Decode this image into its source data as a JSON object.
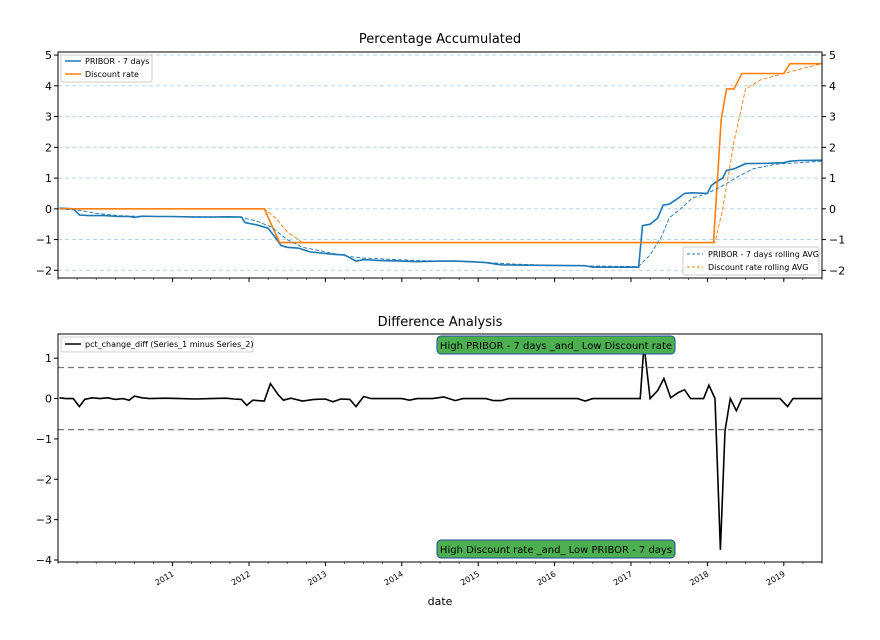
{
  "chart_data": [
    {
      "type": "line",
      "title": "Percentage Accumulated",
      "ylim": [
        -2.25,
        5.1
      ],
      "y_ticks": [
        -2,
        -1,
        0,
        1,
        2,
        3,
        4,
        5
      ],
      "y_tick_labels": [
        "−2",
        "−1",
        "0",
        "1",
        "2",
        "3",
        "4",
        "5"
      ],
      "secondary_y_axis": true,
      "grid": "horizontal dashed",
      "legends": [
        {
          "placement": "upper left",
          "entries": [
            "PRIBOR - 7 days",
            "Discount rate"
          ]
        },
        {
          "placement": "lower right",
          "entries": [
            "PRIBOR - 7 days rolling AVG",
            "Discount rate rolling AVG"
          ]
        }
      ],
      "series": [
        {
          "name": "PRIBOR - 7 days",
          "color": "#1f77b4",
          "style": "solid",
          "points": [
            [
              2010.02,
              0.02
            ],
            [
              2010.2,
              0.0
            ],
            [
              2010.28,
              -0.2
            ],
            [
              2010.4,
              -0.22
            ],
            [
              2010.6,
              -0.22
            ],
            [
              2010.8,
              -0.25
            ],
            [
              2010.93,
              -0.25
            ],
            [
              2011.0,
              -0.28
            ],
            [
              2011.1,
              -0.24
            ],
            [
              2011.3,
              -0.25
            ],
            [
              2011.5,
              -0.25
            ],
            [
              2011.8,
              -0.27
            ],
            [
              2012.0,
              -0.27
            ],
            [
              2012.2,
              -0.26
            ],
            [
              2012.4,
              -0.27
            ],
            [
              2012.45,
              -0.45
            ],
            [
              2012.6,
              -0.52
            ],
            [
              2012.75,
              -0.63
            ],
            [
              2012.85,
              -0.95
            ],
            [
              2012.92,
              -1.2
            ],
            [
              2013.0,
              -1.25
            ],
            [
              2013.15,
              -1.28
            ],
            [
              2013.3,
              -1.4
            ],
            [
              2013.6,
              -1.48
            ],
            [
              2013.75,
              -1.5
            ],
            [
              2013.9,
              -1.7
            ],
            [
              2014.0,
              -1.65
            ],
            [
              2014.2,
              -1.68
            ],
            [
              2014.5,
              -1.7
            ],
            [
              2014.7,
              -1.72
            ],
            [
              2015.0,
              -1.7
            ],
            [
              2015.2,
              -1.7
            ],
            [
              2015.4,
              -1.72
            ],
            [
              2015.6,
              -1.75
            ],
            [
              2015.8,
              -1.82
            ],
            [
              2016.0,
              -1.83
            ],
            [
              2016.5,
              -1.84
            ],
            [
              2016.9,
              -1.85
            ],
            [
              2017.0,
              -1.9
            ],
            [
              2017.2,
              -1.9
            ],
            [
              2017.6,
              -1.9
            ],
            [
              2017.65,
              -0.55
            ],
            [
              2017.75,
              -0.5
            ],
            [
              2017.85,
              -0.3
            ],
            [
              2017.92,
              0.12
            ],
            [
              2018.0,
              0.15
            ],
            [
              2018.12,
              0.35
            ],
            [
              2018.2,
              0.5
            ],
            [
              2018.3,
              0.52
            ],
            [
              2018.5,
              0.5
            ],
            [
              2018.55,
              0.75
            ],
            [
              2018.6,
              0.85
            ],
            [
              2018.7,
              1.0
            ],
            [
              2018.75,
              1.25
            ],
            [
              2018.85,
              1.3
            ],
            [
              2019.0,
              1.47
            ],
            [
              2019.3,
              1.48
            ],
            [
              2019.5,
              1.5
            ],
            [
              2019.58,
              1.55
            ],
            [
              2019.7,
              1.57
            ],
            [
              2020.0,
              1.58
            ]
          ]
        },
        {
          "name": "Discount rate",
          "color": "#ff7f0e",
          "style": "solid",
          "points": [
            [
              2010.02,
              0.0
            ],
            [
              2012.7,
              0.0
            ],
            [
              2012.9,
              -1.1
            ],
            [
              2018.58,
              -1.1
            ],
            [
              2018.68,
              2.9
            ],
            [
              2018.75,
              3.9
            ],
            [
              2018.85,
              3.9
            ],
            [
              2018.95,
              4.4
            ],
            [
              2019.5,
              4.4
            ],
            [
              2019.58,
              4.72
            ],
            [
              2020.0,
              4.72
            ]
          ]
        },
        {
          "name": "PRIBOR - 7 days rolling AVG",
          "color": "#1f77b4",
          "style": "dashed",
          "points": [
            [
              2010.02,
              0.0
            ],
            [
              2010.3,
              -0.05
            ],
            [
              2010.5,
              -0.15
            ],
            [
              2010.8,
              -0.22
            ],
            [
              2011.1,
              -0.25
            ],
            [
              2012.0,
              -0.26
            ],
            [
              2012.4,
              -0.28
            ],
            [
              2012.6,
              -0.4
            ],
            [
              2012.8,
              -0.6
            ],
            [
              2013.0,
              -1.0
            ],
            [
              2013.2,
              -1.25
            ],
            [
              2013.5,
              -1.4
            ],
            [
              2013.8,
              -1.55
            ],
            [
              2014.0,
              -1.6
            ],
            [
              2014.5,
              -1.66
            ],
            [
              2015.0,
              -1.7
            ],
            [
              2015.5,
              -1.73
            ],
            [
              2016.0,
              -1.8
            ],
            [
              2016.5,
              -1.84
            ],
            [
              2017.0,
              -1.86
            ],
            [
              2017.6,
              -1.88
            ],
            [
              2017.75,
              -1.5
            ],
            [
              2017.9,
              -0.9
            ],
            [
              2018.0,
              -0.3
            ],
            [
              2018.15,
              0.0
            ],
            [
              2018.3,
              0.35
            ],
            [
              2018.5,
              0.5
            ],
            [
              2018.7,
              0.75
            ],
            [
              2018.9,
              1.05
            ],
            [
              2019.1,
              1.3
            ],
            [
              2019.4,
              1.45
            ],
            [
              2019.7,
              1.5
            ],
            [
              2020.0,
              1.55
            ]
          ]
        },
        {
          "name": "Discount rate rolling AVG",
          "color": "#ff7f0e",
          "style": "dashed",
          "points": [
            [
              2010.02,
              0.0
            ],
            [
              2012.7,
              0.0
            ],
            [
              2012.85,
              -0.3
            ],
            [
              2013.0,
              -0.75
            ],
            [
              2013.2,
              -1.1
            ],
            [
              2018.6,
              -1.1
            ],
            [
              2018.7,
              0.0
            ],
            [
              2018.85,
              2.2
            ],
            [
              2019.0,
              3.9
            ],
            [
              2019.2,
              4.2
            ],
            [
              2019.5,
              4.4
            ],
            [
              2019.8,
              4.6
            ],
            [
              2020.0,
              4.72
            ]
          ]
        }
      ]
    },
    {
      "type": "line",
      "title": "Difference Analysis",
      "xlabel": "date",
      "ylim": [
        -4.05,
        1.6
      ],
      "y_ticks": [
        -4,
        -3,
        -2,
        -1,
        0,
        1
      ],
      "y_tick_labels": [
        "−4",
        "−3",
        "−2",
        "−1",
        "0",
        "1"
      ],
      "x_ticks": [
        2011,
        2012,
        2013,
        2014,
        2015,
        2016,
        2017,
        2018,
        2019
      ],
      "x_tick_labels": [
        "2011",
        "2012",
        "2013",
        "2014",
        "2015",
        "2016",
        "2017",
        "2018",
        "2019"
      ],
      "thresholds": [
        0.77,
        -0.77
      ],
      "legend": {
        "placement": "upper left",
        "entries": [
          "pct_change_diff (Series_1 minus Series_2)"
        ]
      },
      "annotations": [
        {
          "text": "High PRIBOR - 7 days _and_ Low Discount rate",
          "x": 2016.1,
          "y": 1.33,
          "bg": "#4caf50"
        },
        {
          "text": "High Discount rate _and_ Low PRIBOR - 7 days",
          "x": 2016.1,
          "y": -3.72,
          "bg": "#4caf50"
        }
      ],
      "series": [
        {
          "name": "pct_change_diff (Series_1 minus Series_2)",
          "color": "#000000",
          "points": [
            [
              2010.02,
              0.02
            ],
            [
              2010.1,
              0.0
            ],
            [
              2010.2,
              0.0
            ],
            [
              2010.28,
              -0.2
            ],
            [
              2010.35,
              -0.02
            ],
            [
              2010.45,
              0.02
            ],
            [
              2010.55,
              0.0
            ],
            [
              2010.65,
              0.02
            ],
            [
              2010.75,
              -0.02
            ],
            [
              2010.85,
              0.0
            ],
            [
              2010.93,
              -0.04
            ],
            [
              2011.0,
              0.06
            ],
            [
              2011.1,
              0.02
            ],
            [
              2011.2,
              0.0
            ],
            [
              2011.4,
              0.01
            ],
            [
              2011.6,
              0.0
            ],
            [
              2011.8,
              -0.01
            ],
            [
              2012.0,
              0.0
            ],
            [
              2012.2,
              0.01
            ],
            [
              2012.3,
              -0.01
            ],
            [
              2012.4,
              -0.02
            ],
            [
              2012.47,
              -0.17
            ],
            [
              2012.55,
              -0.04
            ],
            [
              2012.7,
              -0.06
            ],
            [
              2012.78,
              0.37
            ],
            [
              2012.88,
              0.1
            ],
            [
              2012.95,
              -0.04
            ],
            [
              2013.05,
              0.01
            ],
            [
              2013.2,
              -0.06
            ],
            [
              2013.35,
              -0.02
            ],
            [
              2013.5,
              -0.01
            ],
            [
              2013.6,
              -0.08
            ],
            [
              2013.7,
              -0.01
            ],
            [
              2013.82,
              -0.02
            ],
            [
              2013.9,
              -0.2
            ],
            [
              2014.0,
              0.05
            ],
            [
              2014.1,
              0.0
            ],
            [
              2014.5,
              0.0
            ],
            [
              2014.6,
              -0.04
            ],
            [
              2014.7,
              0.0
            ],
            [
              2014.9,
              0.0
            ],
            [
              2015.05,
              0.04
            ],
            [
              2015.2,
              -0.05
            ],
            [
              2015.3,
              0.0
            ],
            [
              2015.6,
              0.0
            ],
            [
              2015.7,
              -0.05
            ],
            [
              2015.8,
              -0.05
            ],
            [
              2015.9,
              0.0
            ],
            [
              2016.8,
              0.0
            ],
            [
              2016.9,
              -0.06
            ],
            [
              2017.0,
              0.0
            ],
            [
              2017.5,
              0.0
            ],
            [
              2017.62,
              0.0
            ],
            [
              2017.67,
              1.33
            ],
            [
              2017.75,
              0.0
            ],
            [
              2017.85,
              0.2
            ],
            [
              2017.93,
              0.5
            ],
            [
              2018.02,
              0.02
            ],
            [
              2018.12,
              0.15
            ],
            [
              2018.2,
              0.22
            ],
            [
              2018.28,
              0.0
            ],
            [
              2018.45,
              0.0
            ],
            [
              2018.52,
              0.33
            ],
            [
              2018.6,
              0.0
            ],
            [
              2018.67,
              -3.75
            ],
            [
              2018.73,
              -0.8
            ],
            [
              2018.8,
              0.0
            ],
            [
              2018.88,
              -0.3
            ],
            [
              2018.95,
              0.0
            ],
            [
              2019.3,
              0.0
            ],
            [
              2019.45,
              0.0
            ],
            [
              2019.55,
              -0.2
            ],
            [
              2019.62,
              0.0
            ],
            [
              2020.0,
              0.0
            ]
          ]
        }
      ]
    }
  ]
}
